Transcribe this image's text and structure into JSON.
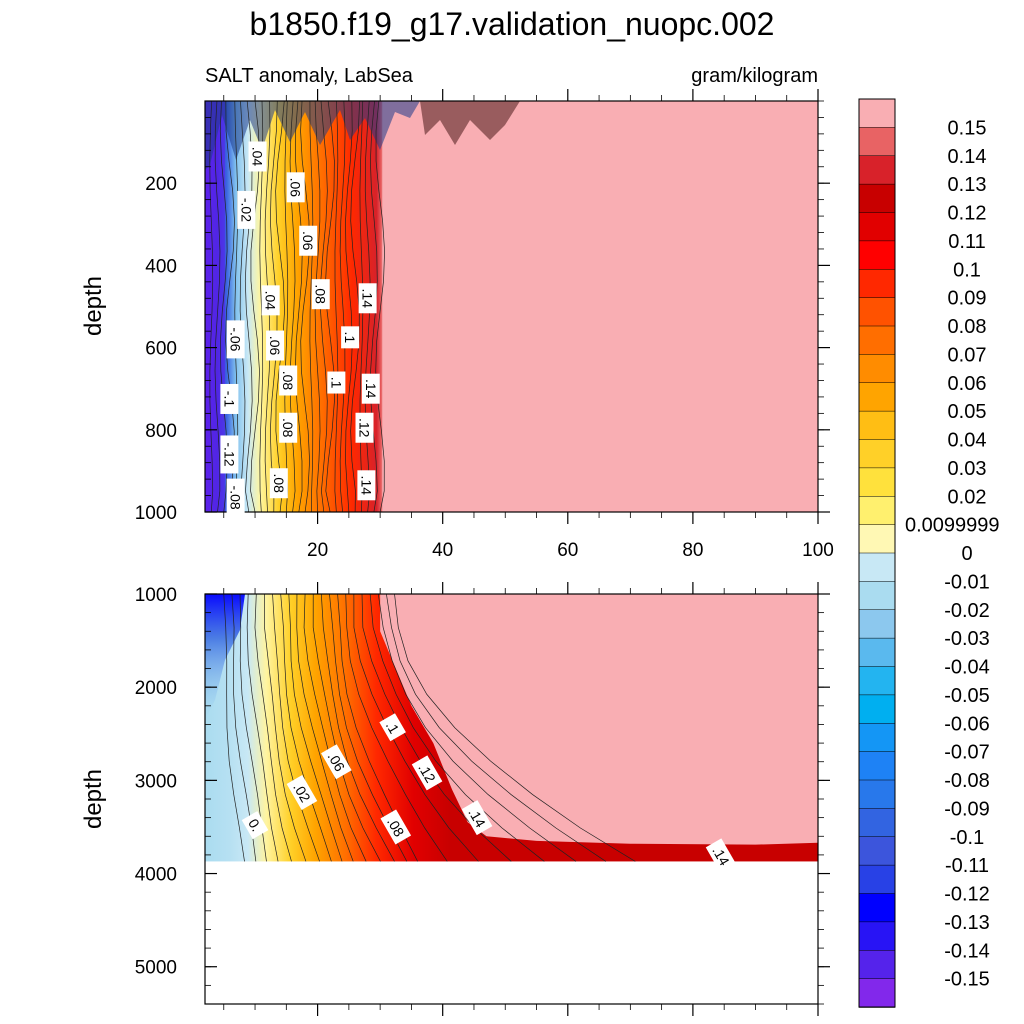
{
  "chart_data": {
    "type": "contour",
    "title": "b1850.f19_g17.validation_nuopc.002",
    "subtitle_left": "SALT anomaly, LabSea",
    "subtitle_right": "gram/kilogram",
    "colorbar": {
      "levels": [
        "0.15",
        "0.14",
        "0.13",
        "0.12",
        "0.11",
        "0.1",
        "0.09",
        "0.08",
        "0.07",
        "0.06",
        "0.05",
        "0.04",
        "0.03",
        "0.02",
        "0.0099999",
        "0",
        "-0.01",
        "-0.02",
        "-0.03",
        "-0.04",
        "-0.05",
        "-0.06",
        "-0.07",
        "-0.08",
        "-0.09",
        "-0.1",
        "-0.11",
        "-0.12",
        "-0.13",
        "-0.14",
        "-0.15"
      ],
      "colors": [
        "#f9aeb3",
        "#e86364",
        "#d8222a",
        "#c80000",
        "#e10000",
        "#ff0000",
        "#ff2800",
        "#ff5200",
        "#ff6e00",
        "#ff8c00",
        "#ffa400",
        "#ffbe14",
        "#ffd028",
        "#ffe13c",
        "#fff06e",
        "#fff8b4",
        "#c8e8f5",
        "#aadcf0",
        "#8cc8ee",
        "#5ab9ee",
        "#23b4f0",
        "#00aff0",
        "#1496f5",
        "#1e82f5",
        "#2878eb",
        "#3264e1",
        "#3c55dc",
        "#2841e6",
        "#0000ff",
        "#2814f5",
        "#5523eb",
        "#8228eb"
      ]
    },
    "panels": [
      {
        "name": "upper",
        "xlim": [
          2,
          100
        ],
        "ylim": [
          1000,
          0
        ],
        "xticks": [
          20,
          40,
          60,
          80,
          100
        ],
        "yticks": [
          200,
          400,
          600,
          800,
          1000
        ],
        "ylabel": "depth",
        "fill_boundary_x": 30,
        "contour_labels": [
          {
            "text": ".04",
            "x": 10.4,
            "y": 135
          },
          {
            "text": "-.02",
            "x": 8.6,
            "y": 265
          },
          {
            "text": ".06",
            "x": 16.5,
            "y": 210
          },
          {
            "text": ".06",
            "x": 18.5,
            "y": 340
          },
          {
            "text": ".04",
            "x": 12.5,
            "y": 485
          },
          {
            "text": ".08",
            "x": 20.5,
            "y": 470
          },
          {
            "text": ".14",
            "x": 28,
            "y": 480
          },
          {
            "text": "-.06",
            "x": 6.9,
            "y": 580
          },
          {
            "text": ".06",
            "x": 13.2,
            "y": 595
          },
          {
            "text": ".1",
            "x": 25.2,
            "y": 575
          },
          {
            "text": "-.1",
            "x": 5.9,
            "y": 725
          },
          {
            "text": ".08",
            "x": 15.3,
            "y": 680
          },
          {
            "text": ".1",
            "x": 23,
            "y": 685
          },
          {
            "text": ".14",
            "x": 28.5,
            "y": 700
          },
          {
            "text": ".08",
            "x": 15.3,
            "y": 795
          },
          {
            "text": ".12",
            "x": 27.5,
            "y": 795
          },
          {
            "text": "-.12",
            "x": 5.9,
            "y": 860
          },
          {
            "text": ".08",
            "x": 13.8,
            "y": 930
          },
          {
            "text": ".14",
            "x": 27.8,
            "y": 935
          },
          {
            "text": "-.08",
            "x": 6.9,
            "y": 965
          }
        ]
      },
      {
        "name": "lower",
        "xlim": [
          2,
          100
        ],
        "ylim": [
          5400,
          1000
        ],
        "xticks": [
          20,
          40,
          60,
          80,
          100
        ],
        "yticks": [
          1000,
          2000,
          3000,
          4000,
          5000
        ],
        "ylabel": "depth",
        "bottom_depth": 3870,
        "fill_boundary": [
          [
            30,
            1000
          ],
          [
            30,
            1400
          ],
          [
            35,
            2200
          ],
          [
            38.5,
            2600
          ],
          [
            41.5,
            3100
          ],
          [
            44,
            3450
          ],
          [
            47,
            3600
          ],
          [
            55,
            3650
          ],
          [
            70,
            3680
          ],
          [
            90,
            3690
          ],
          [
            100,
            3670
          ]
        ],
        "contour_labels": [
          {
            "text": ".1",
            "x": 32,
            "y": 2430
          },
          {
            "text": ".06",
            "x": 23,
            "y": 2800
          },
          {
            "text": ".12",
            "x": 37.5,
            "y": 2920
          },
          {
            "text": ".02",
            "x": 17.5,
            "y": 3130
          },
          {
            "text": ".14",
            "x": 45.5,
            "y": 3400
          },
          {
            "text": ".08",
            "x": 32.5,
            "y": 3500
          },
          {
            "text": "0.",
            "x": 10,
            "y": 3480
          },
          {
            "text": ".14",
            "x": 84.5,
            "y": 3810
          }
        ]
      }
    ]
  }
}
